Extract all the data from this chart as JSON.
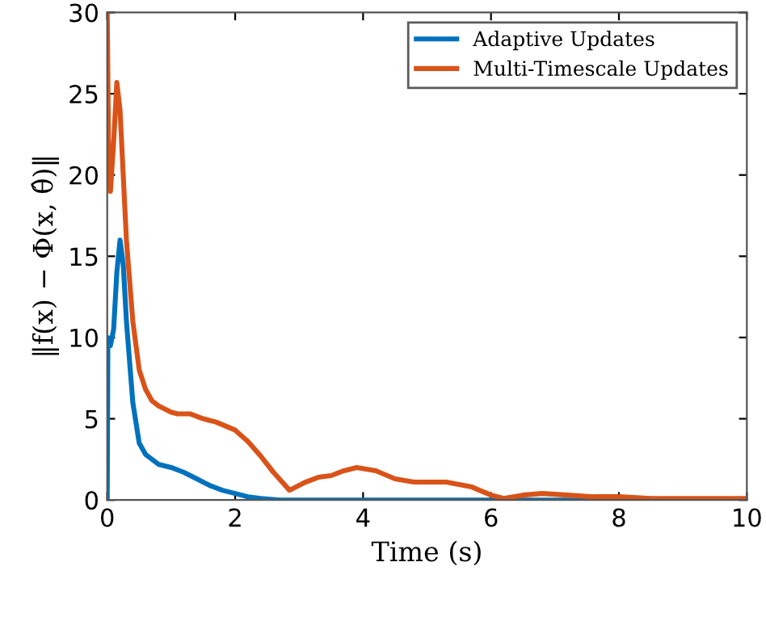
{
  "chart_data": {
    "type": "line",
    "xlabel": "Time (s)",
    "ylabel": "‖f(x) − Φ(x, θ̂)‖",
    "xlim": [
      0,
      10
    ],
    "ylim": [
      0,
      30
    ],
    "xticks": [
      0,
      2,
      4,
      6,
      8,
      10
    ],
    "yticks": [
      0,
      5,
      10,
      15,
      20,
      25,
      30
    ],
    "grid": false,
    "legend": "top right",
    "marker": "none",
    "line_style": "solid",
    "series": [
      {
        "name": "Adaptive Updates",
        "color": "#0072bd",
        "x": [
          0,
          0.01,
          0.05,
          0.1,
          0.15,
          0.2,
          0.25,
          0.3,
          0.4,
          0.5,
          0.6,
          0.8,
          1.0,
          1.2,
          1.4,
          1.6,
          1.8,
          2.0,
          2.2,
          2.4,
          2.7,
          3.0,
          4,
          5,
          6,
          7,
          8
        ],
        "values": [
          0,
          10,
          9.5,
          10.5,
          14,
          16,
          14.5,
          11,
          6,
          3.5,
          2.8,
          2.2,
          2.0,
          1.7,
          1.3,
          0.9,
          0.6,
          0.4,
          0.2,
          0.1,
          0,
          0,
          0,
          0,
          0,
          0,
          0
        ]
      },
      {
        "name": "Multi-Timescale Updates",
        "color": "#d95319",
        "x": [
          0,
          0.02,
          0.05,
          0.1,
          0.15,
          0.2,
          0.3,
          0.4,
          0.5,
          0.6,
          0.7,
          0.8,
          1.0,
          1.1,
          1.3,
          1.5,
          1.7,
          2.0,
          2.2,
          2.4,
          2.6,
          2.85,
          3.1,
          3.3,
          3.5,
          3.7,
          3.9,
          4.2,
          4.5,
          4.8,
          5.3,
          5.7,
          6.0,
          6.2,
          6.5,
          6.8,
          7.2,
          7.6,
          8.0,
          8.5,
          9.0,
          9.5,
          10
        ],
        "values": [
          30,
          22,
          19,
          22,
          25.7,
          24,
          16,
          11,
          8,
          6.8,
          6.1,
          5.8,
          5.4,
          5.3,
          5.3,
          5.0,
          4.8,
          4.3,
          3.6,
          2.7,
          1.7,
          0.6,
          1.1,
          1.4,
          1.5,
          1.8,
          2.0,
          1.8,
          1.3,
          1.1,
          1.1,
          0.8,
          0.3,
          0.1,
          0.3,
          0.4,
          0.3,
          0.2,
          0.2,
          0.1,
          0.1,
          0.1,
          0.1
        ]
      }
    ]
  }
}
